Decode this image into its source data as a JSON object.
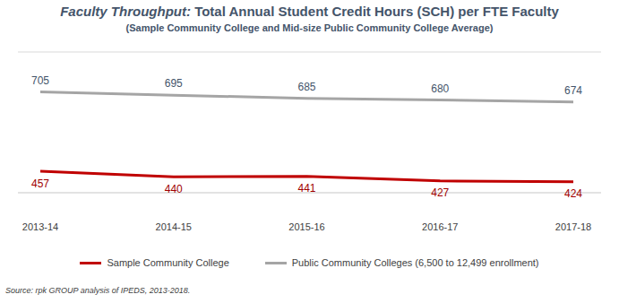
{
  "chart_data": {
    "type": "line",
    "title": "Faculty Throughput: Total Annual Student Credit Hours (SCH) per FTE Faculty",
    "subtitle": "(Sample Community College and Mid-size Public Community College Average)",
    "source": "Source: rpk GROUP analysis of IPEDS, 2013-2018.",
    "categories": [
      "2013-14",
      "2014-15",
      "2015-16",
      "2016-17",
      "2017-18"
    ],
    "series": [
      {
        "name": "Sample Community College",
        "color": "#c00000",
        "values": [
          457,
          440,
          441,
          427,
          424
        ]
      },
      {
        "name": "Public Community Colleges (6,500 to 12,499 enrollment)",
        "color": "#a5a5a5",
        "values": [
          705,
          695,
          685,
          680,
          674
        ]
      }
    ],
    "ylim": [
      390,
      830
    ],
    "yticks": [
      390,
      500,
      610,
      720,
      830
    ],
    "grid": true,
    "legend": "bottom",
    "data_labels": true,
    "tick_labels": "x"
  }
}
